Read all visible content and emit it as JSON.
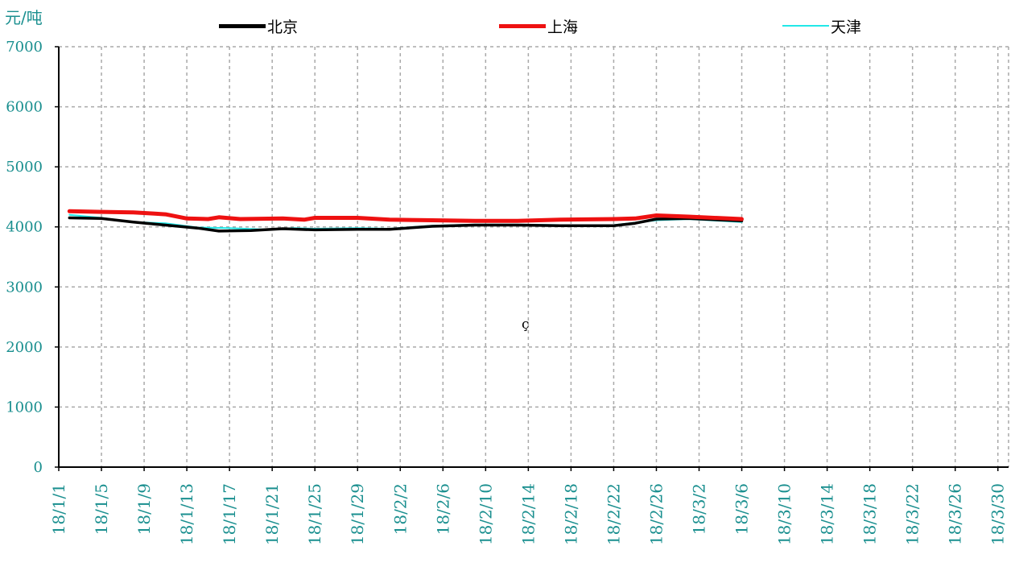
{
  "chart_data": {
    "type": "line",
    "ylabel": "元/吨",
    "ylim": [
      0,
      7000
    ],
    "yticks": [
      "0",
      "1000",
      "2000",
      "3000",
      "4000",
      "5000",
      "6000",
      "7000"
    ],
    "xlim": [
      "2018-01-01",
      "2018-03-30"
    ],
    "xticks": [
      "18/1/1",
      "18/1/5",
      "18/1/9",
      "18/1/13",
      "18/1/17",
      "18/1/21",
      "18/1/25",
      "18/1/29",
      "18/2/2",
      "18/2/6",
      "18/2/10",
      "18/2/14",
      "18/2/18",
      "18/2/22",
      "18/2/26",
      "18/3/2",
      "18/3/6",
      "18/3/10",
      "18/3/14",
      "18/3/18",
      "18/3/22",
      "18/3/26",
      "18/3/30"
    ],
    "grid": true,
    "grid_style": "dashed",
    "legend_position": "top",
    "annotation": "ç",
    "series": [
      {
        "name": "北京",
        "color": "#000000",
        "x": [
          "2018-01-02",
          "2018-01-05",
          "2018-01-08",
          "2018-01-11",
          "2018-01-14",
          "2018-01-16",
          "2018-01-19",
          "2018-01-22",
          "2018-01-25",
          "2018-01-29",
          "2018-02-01",
          "2018-02-05",
          "2018-02-09",
          "2018-02-13",
          "2018-02-17",
          "2018-02-22",
          "2018-02-24",
          "2018-02-26",
          "2018-03-01",
          "2018-03-06"
        ],
        "values": [
          4150,
          4140,
          4080,
          4030,
          3980,
          3930,
          3940,
          3970,
          3950,
          3960,
          3960,
          4010,
          4030,
          4030,
          4020,
          4020,
          4060,
          4130,
          4140,
          4100
        ]
      },
      {
        "name": "上海",
        "color": "#ee1111",
        "x": [
          "2018-01-02",
          "2018-01-05",
          "2018-01-08",
          "2018-01-10",
          "2018-01-11",
          "2018-01-13",
          "2018-01-15",
          "2018-01-16",
          "2018-01-18",
          "2018-01-22",
          "2018-01-24",
          "2018-01-25",
          "2018-01-29",
          "2018-02-01",
          "2018-02-05",
          "2018-02-09",
          "2018-02-13",
          "2018-02-17",
          "2018-02-22",
          "2018-02-24",
          "2018-02-26",
          "2018-03-01",
          "2018-03-06"
        ],
        "values": [
          4260,
          4250,
          4240,
          4220,
          4210,
          4140,
          4130,
          4160,
          4130,
          4140,
          4120,
          4150,
          4150,
          4120,
          4110,
          4100,
          4100,
          4120,
          4130,
          4140,
          4190,
          4170,
          4130
        ]
      },
      {
        "name": "天津",
        "color": "#22e8e8",
        "x": [
          "2018-01-02",
          "2018-01-05",
          "2018-01-08",
          "2018-01-11",
          "2018-01-14",
          "2018-01-17",
          "2018-01-20",
          "2018-01-23",
          "2018-01-25",
          "2018-01-29",
          "2018-02-01",
          "2018-02-05",
          "2018-02-09",
          "2018-02-13",
          "2018-02-17",
          "2018-02-22",
          "2018-02-26",
          "2018-03-01",
          "2018-03-06"
        ],
        "values": [
          4200,
          4150,
          4080,
          4060,
          3990,
          3980,
          3960,
          3980,
          3970,
          3980,
          3970,
          4020,
          4040,
          4040,
          4030,
          4030,
          4110,
          4130,
          4080
        ]
      }
    ]
  }
}
